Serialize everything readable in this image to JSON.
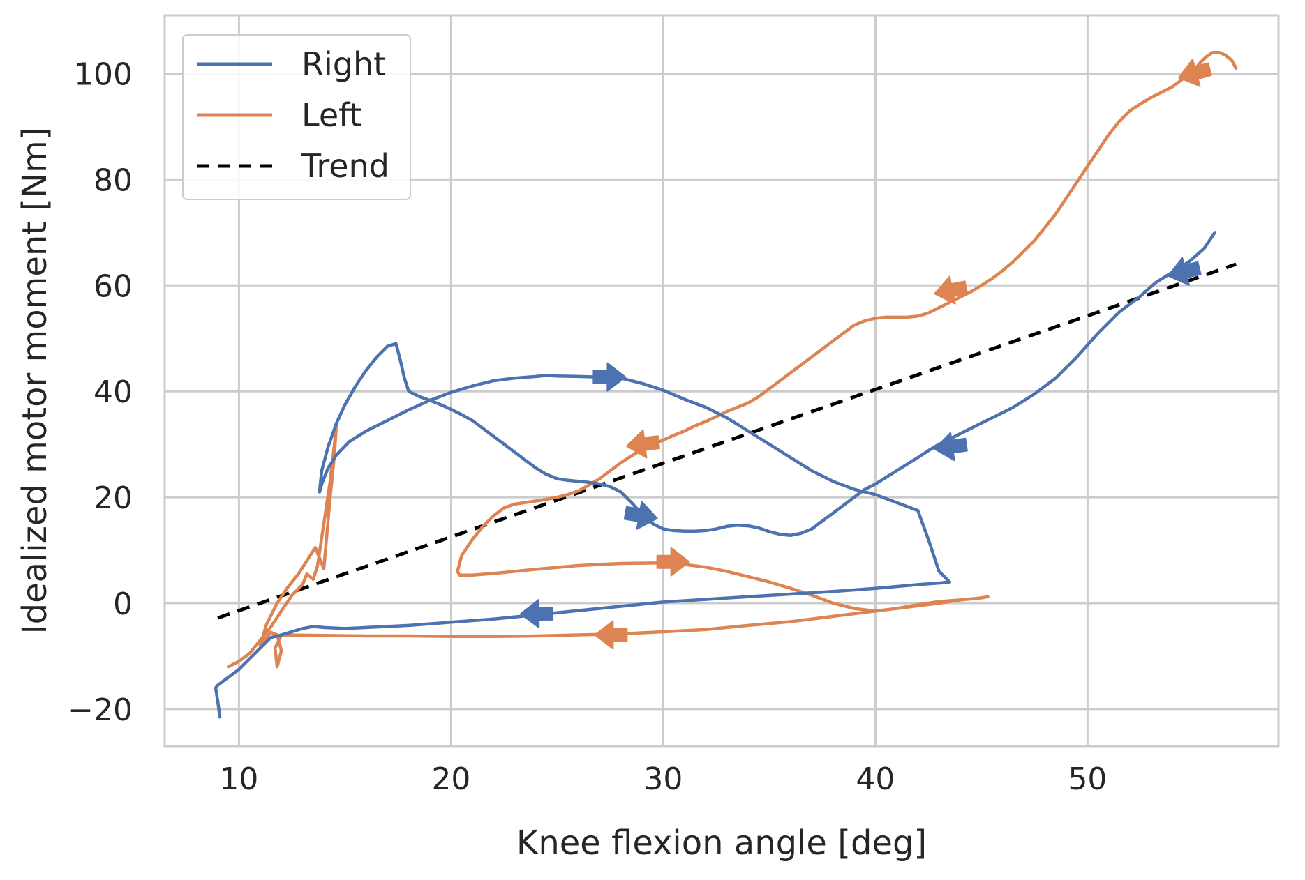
{
  "chart_data": {
    "type": "line",
    "title": "",
    "xlabel": "Knee flexion angle [deg]",
    "ylabel": "Idealized motor moment [Nm]",
    "xlim": [
      6.5,
      59
    ],
    "ylim": [
      -27,
      111
    ],
    "xticks": [
      10,
      20,
      30,
      40,
      50
    ],
    "yticks": [
      -20,
      0,
      20,
      40,
      60,
      80,
      100
    ],
    "xtick_labels": [
      "10",
      "20",
      "30",
      "40",
      "50"
    ],
    "ytick_labels": [
      "−20",
      "0",
      "20",
      "40",
      "60",
      "80",
      "100"
    ],
    "grid": true,
    "legend_position": "top-left",
    "series": [
      {
        "name": "Right",
        "color": "#4c72b0",
        "style": "solid",
        "x": [
          56.0,
          55.5,
          54.8,
          54.0,
          53.2,
          52.5,
          51.5,
          50.5,
          49.5,
          48.5,
          47.5,
          46.5,
          45.5,
          44.5,
          43.5,
          43.0,
          42.5,
          42.0,
          41.0,
          40.0,
          39.5,
          39.0,
          38.5,
          38.0,
          37.5,
          37.0,
          36.5,
          36.0,
          35.5,
          35.0,
          34.5,
          34.0,
          33.5,
          33.0,
          32.5,
          32.0,
          31.5,
          31.0,
          30.5,
          30.0,
          29.5,
          29.0,
          28.5,
          28.0,
          27.5,
          27.0,
          26.5,
          26.0,
          25.5,
          25.0,
          24.5,
          24.0,
          23.5,
          23.0,
          22.5,
          22.0,
          21.5,
          21.0,
          20.5,
          20.0,
          19.5,
          19.0,
          18.5,
          18.0,
          17.8,
          17.6,
          17.4,
          17.0,
          16.5,
          16.0,
          15.5,
          15.0,
          14.6,
          14.2,
          13.9,
          13.8,
          13.9,
          14.2,
          14.6,
          15.2,
          16.0,
          17.0,
          18.0,
          19.0,
          20.0,
          21.0,
          22.0,
          23.0,
          24.0,
          24.5,
          25.0,
          26.0,
          27.0,
          28.0,
          29.0,
          30.0,
          31.0,
          32.0,
          33.0,
          34.0,
          35.0,
          36.0,
          37.0,
          38.0,
          39.0,
          40.0,
          41.0,
          42.0,
          42.5,
          43.0,
          43.5,
          43.0,
          42.0,
          40.0,
          38.0,
          36.0,
          34.0,
          32.0,
          30.0,
          28.0,
          26.0,
          24.0,
          22.0,
          20.0,
          18.0,
          16.0,
          15.0,
          14.0,
          13.5,
          13.0,
          12.0,
          11.5,
          11.0,
          10.5,
          10.0,
          9.5,
          9.0,
          8.9,
          9.0,
          9.1
        ],
        "y": [
          70.0,
          67.0,
          64.5,
          62.5,
          60.5,
          58.0,
          55.0,
          51.0,
          46.5,
          42.5,
          39.5,
          37.0,
          35.0,
          33.0,
          31.0,
          30.0,
          28.8,
          27.5,
          25.0,
          22.5,
          21.5,
          20.0,
          18.5,
          17.0,
          15.5,
          14.0,
          13.2,
          12.8,
          13.0,
          13.5,
          14.2,
          14.6,
          14.7,
          14.5,
          14.0,
          13.7,
          13.6,
          13.6,
          13.7,
          14.0,
          15.0,
          16.8,
          19.0,
          21.0,
          22.0,
          22.5,
          22.8,
          23.0,
          23.2,
          23.5,
          24.3,
          25.5,
          27.0,
          28.5,
          30.0,
          31.5,
          33.0,
          34.5,
          35.6,
          36.6,
          37.5,
          38.3,
          39.0,
          40.0,
          42.5,
          46.0,
          49.0,
          48.5,
          46.5,
          44.0,
          41.0,
          37.5,
          34.0,
          29.5,
          25.0,
          21.0,
          22.5,
          25.5,
          28.0,
          30.5,
          32.5,
          34.5,
          36.5,
          38.3,
          39.8,
          41.0,
          42.0,
          42.5,
          42.8,
          43.0,
          42.9,
          42.8,
          42.7,
          42.5,
          41.5,
          40.2,
          38.5,
          37.0,
          35.0,
          32.5,
          30.0,
          27.5,
          25.0,
          23.0,
          21.5,
          20.5,
          19.0,
          17.5,
          12.0,
          6.0,
          4.0,
          3.8,
          3.5,
          2.8,
          2.2,
          1.7,
          1.2,
          0.7,
          0.2,
          -0.6,
          -1.4,
          -2.2,
          -3.0,
          -3.6,
          -4.2,
          -4.6,
          -4.8,
          -4.6,
          -4.4,
          -4.8,
          -6.0,
          -6.5,
          -8.5,
          -10.5,
          -12.5,
          -14.0,
          -15.5,
          -16.0,
          -18.5,
          -21.5
        ]
      },
      {
        "name": "Left",
        "color": "#dd8452",
        "style": "solid",
        "x": [
          57.0,
          56.8,
          56.5,
          56.2,
          55.9,
          55.6,
          55.3,
          55.0,
          54.5,
          54.0,
          53.5,
          53.0,
          52.5,
          52.0,
          51.5,
          51.0,
          50.5,
          50.0,
          49.5,
          49.0,
          48.5,
          48.0,
          47.5,
          47.0,
          46.5,
          46.0,
          45.5,
          45.0,
          44.5,
          44.0,
          43.5,
          43.0,
          42.5,
          42.0,
          41.5,
          41.0,
          40.5,
          40.0,
          39.5,
          39.0,
          38.5,
          38.0,
          37.5,
          37.0,
          36.5,
          36.0,
          35.5,
          35.0,
          34.5,
          34.0,
          33.5,
          33.0,
          32.5,
          32.0,
          31.5,
          31.0,
          30.5,
          30.0,
          29.5,
          29.0,
          28.5,
          28.0,
          27.5,
          27.0,
          26.5,
          26.0,
          25.5,
          25.0,
          24.5,
          24.0,
          23.5,
          23.0,
          22.5,
          22.0,
          21.5,
          21.0,
          20.5,
          20.3,
          20.4,
          21.0,
          22.0,
          24.0,
          26.0,
          28.0,
          30.0,
          31.0,
          32.0,
          33.0,
          34.0,
          35.0,
          36.0,
          37.0,
          38.0,
          39.0,
          40.0,
          41.0,
          42.0,
          43.0,
          44.0,
          44.5,
          45.0,
          45.3,
          45.0,
          44.0,
          43.0,
          42.0,
          41.0,
          40.0,
          38.0,
          36.0,
          34.0,
          32.0,
          30.0,
          28.0,
          26.0,
          24.0,
          22.0,
          20.0,
          18.0,
          16.0,
          14.0,
          12.0,
          11.7,
          11.8,
          12.0,
          11.8,
          11.5,
          11.2,
          11.0,
          11.3,
          11.8,
          12.3,
          12.8,
          13.2,
          13.6,
          14.0,
          14.3,
          14.5,
          14.6,
          14.5,
          14.3,
          14.0,
          13.7,
          13.5,
          13.2,
          13.0,
          12.5,
          12.0,
          11.5,
          11.0,
          10.5,
          10.0,
          9.5
        ],
        "y": [
          101.0,
          102.5,
          103.5,
          104.0,
          104.0,
          103.2,
          102.0,
          100.5,
          99.0,
          97.5,
          96.5,
          95.5,
          94.3,
          93.0,
          91.0,
          88.5,
          85.5,
          82.5,
          79.5,
          76.5,
          73.5,
          71.0,
          68.5,
          66.5,
          64.5,
          62.8,
          61.3,
          60.0,
          58.8,
          57.8,
          56.8,
          55.8,
          54.8,
          54.2,
          54.0,
          54.0,
          54.0,
          53.8,
          53.3,
          52.5,
          51.0,
          49.5,
          48.0,
          46.5,
          45.0,
          43.5,
          42.0,
          40.5,
          39.0,
          37.8,
          37.0,
          36.2,
          35.2,
          34.3,
          33.5,
          32.5,
          31.7,
          30.8,
          30.0,
          29.0,
          27.8,
          26.5,
          25.0,
          23.5,
          22.3,
          21.2,
          20.5,
          20.0,
          19.6,
          19.3,
          19.0,
          18.7,
          18.0,
          16.5,
          14.5,
          12.0,
          9.0,
          6.0,
          5.3,
          5.3,
          5.6,
          6.4,
          7.1,
          7.5,
          7.6,
          7.3,
          6.8,
          6.0,
          5.0,
          4.0,
          2.8,
          1.5,
          0.0,
          -1.0,
          -1.5,
          -1.0,
          -0.3,
          0.3,
          0.6,
          0.8,
          1.0,
          1.2,
          1.0,
          0.6,
          0.0,
          -0.5,
          -1.0,
          -1.5,
          -2.5,
          -3.5,
          -4.2,
          -5.0,
          -5.4,
          -5.8,
          -6.0,
          -6.2,
          -6.3,
          -6.3,
          -6.2,
          -6.2,
          -6.1,
          -6.0,
          -8.5,
          -12.0,
          -9.0,
          -6.0,
          -5.5,
          -7.0,
          -8.0,
          -4.0,
          0.0,
          3.0,
          5.5,
          8.0,
          10.5,
          6.5,
          20.0,
          28.0,
          34.0,
          30.0,
          23.0,
          15.0,
          7.0,
          4.5,
          5.5,
          3.5,
          1.5,
          -1.5,
          -4.5,
          -7.0,
          -9.5,
          -11.0,
          -12.0
        ]
      },
      {
        "name": "Trend",
        "color": "#000000",
        "style": "dashed",
        "x": [
          9.0,
          57.0
        ],
        "y": [
          -2.8,
          64.0
        ]
      }
    ],
    "direction_arrows": [
      {
        "series": "Right",
        "x": 54.5,
        "y": 62.5,
        "dx": -1,
        "dy": -1.0
      },
      {
        "series": "Right",
        "x": 43.5,
        "y": 29.5,
        "dx": -1,
        "dy": -0.55
      },
      {
        "series": "Right",
        "x": 27.5,
        "y": 42.7,
        "dx": 1,
        "dy": -0.02
      },
      {
        "series": "Right",
        "x": 29.0,
        "y": 16.5,
        "dx": 1,
        "dy": -0.7
      },
      {
        "series": "Right",
        "x": 24.0,
        "y": -2.0,
        "dx": -1,
        "dy": -0.04
      },
      {
        "series": "Left",
        "x": 55.0,
        "y": 100.0,
        "dx": -1,
        "dy": -1.1
      },
      {
        "series": "Left",
        "x": 43.5,
        "y": 59.0,
        "dx": -1,
        "dy": -0.8
      },
      {
        "series": "Left",
        "x": 29.0,
        "y": 30.0,
        "dx": -1,
        "dy": -0.5
      },
      {
        "series": "Left",
        "x": 30.5,
        "y": 7.8,
        "dx": 1,
        "dy": 0
      },
      {
        "series": "Left",
        "x": 27.5,
        "y": -6.0,
        "dx": -1,
        "dy": 0
      }
    ]
  }
}
